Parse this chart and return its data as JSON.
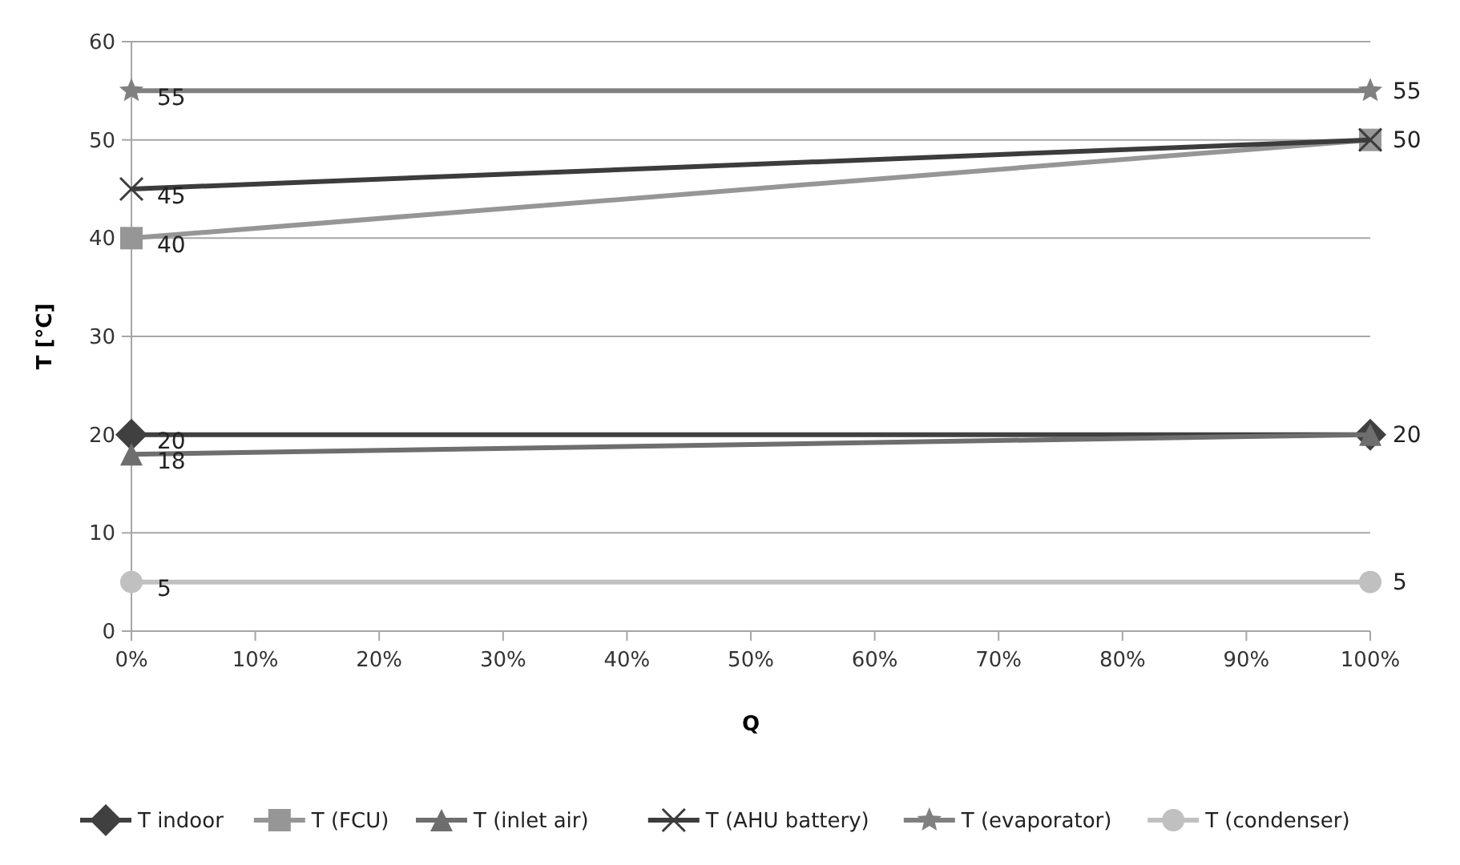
{
  "chart_data": {
    "type": "line",
    "xlabel": "Q",
    "ylabel": "T [°C]",
    "x": [
      0,
      100
    ],
    "xlim": [
      0,
      100
    ],
    "xticks": [
      {
        "value": 0,
        "label": "0%"
      },
      {
        "value": 10,
        "label": "10%"
      },
      {
        "value": 20,
        "label": "20%"
      },
      {
        "value": 30,
        "label": "30%"
      },
      {
        "value": 40,
        "label": "40%"
      },
      {
        "value": 50,
        "label": "50%"
      },
      {
        "value": 60,
        "label": "60%"
      },
      {
        "value": 70,
        "label": "70%"
      },
      {
        "value": 80,
        "label": "80%"
      },
      {
        "value": 90,
        "label": "90%"
      },
      {
        "value": 100,
        "label": "100%"
      }
    ],
    "ylim": [
      0,
      60
    ],
    "yticks": [
      0,
      10,
      20,
      30,
      40,
      50,
      60
    ],
    "grid": "y",
    "legend": "bottom",
    "line_style": "solid",
    "series": [
      {
        "name": "T indoor",
        "color": "#404040",
        "marker": "diamond",
        "values": [
          20,
          20
        ],
        "value_labels": [
          "20",
          null
        ]
      },
      {
        "name": "T (FCU)",
        "color": "#969696",
        "marker": "square",
        "values": [
          40,
          50
        ],
        "value_labels": [
          "40",
          null
        ]
      },
      {
        "name": "T (inlet air)",
        "color": "#6e6e6e",
        "marker": "triangle",
        "values": [
          18,
          20
        ],
        "value_labels": [
          "18",
          "20"
        ]
      },
      {
        "name": "T (AHU battery)",
        "color": "#3c3c3c",
        "marker": "cross",
        "values": [
          45,
          50
        ],
        "value_labels": [
          "45",
          "50"
        ]
      },
      {
        "name": "T (evaporator)",
        "color": "#808080",
        "marker": "star",
        "values": [
          55,
          55
        ],
        "value_labels": [
          "55",
          "55"
        ]
      },
      {
        "name": "T (condenser)",
        "color": "#c0c0c0",
        "marker": "circle",
        "values": [
          5,
          5
        ],
        "value_labels": [
          "5",
          "5"
        ]
      }
    ]
  }
}
